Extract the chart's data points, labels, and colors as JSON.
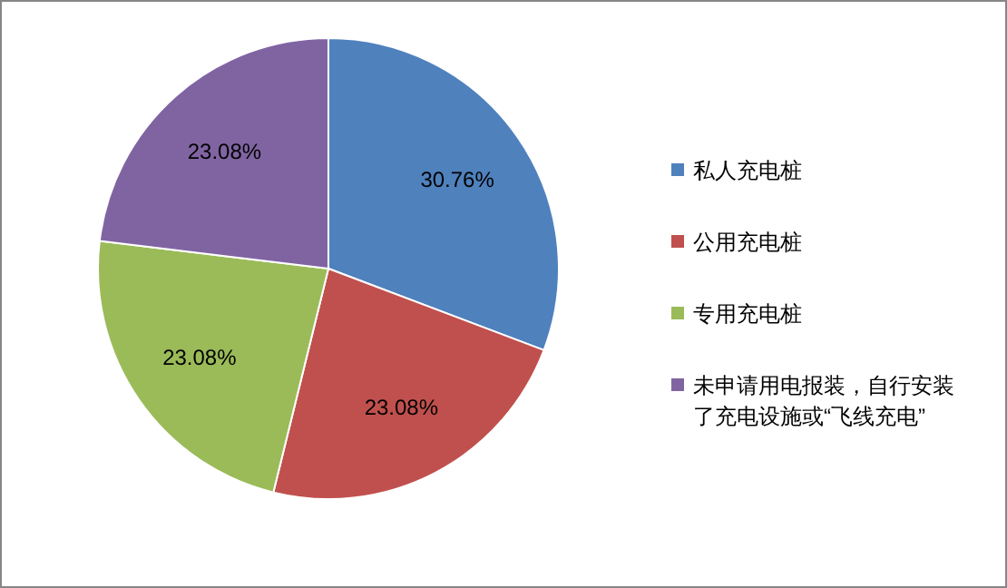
{
  "chart_data": {
    "type": "pie",
    "categories": [
      "私人充电桩",
      "公用充电桩",
      "专用充电桩",
      "未申请用电报装，自行安装了充电设施或“飞线充电”"
    ],
    "values": [
      30.76,
      23.08,
      23.08,
      23.08
    ],
    "colors": [
      "#4f81bd",
      "#c0504d",
      "#9bbb59",
      "#8064a2"
    ],
    "value_labels": [
      "30.76%",
      "23.08%",
      "23.08%",
      "23.08%"
    ],
    "legend": "right"
  }
}
